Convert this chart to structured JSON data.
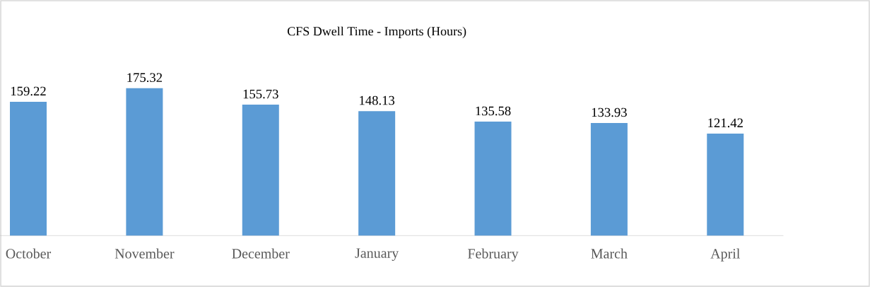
{
  "chart_data": {
    "type": "bar",
    "title": "CFS Dwell Time - Imports (Hours)",
    "categories": [
      "October",
      "November",
      "December",
      "January",
      "February",
      "March",
      "April"
    ],
    "values": [
      159.22,
      175.32,
      155.73,
      148.13,
      135.58,
      133.93,
      121.42
    ],
    "color": "#5b9bd5",
    "data_labels": true
  }
}
